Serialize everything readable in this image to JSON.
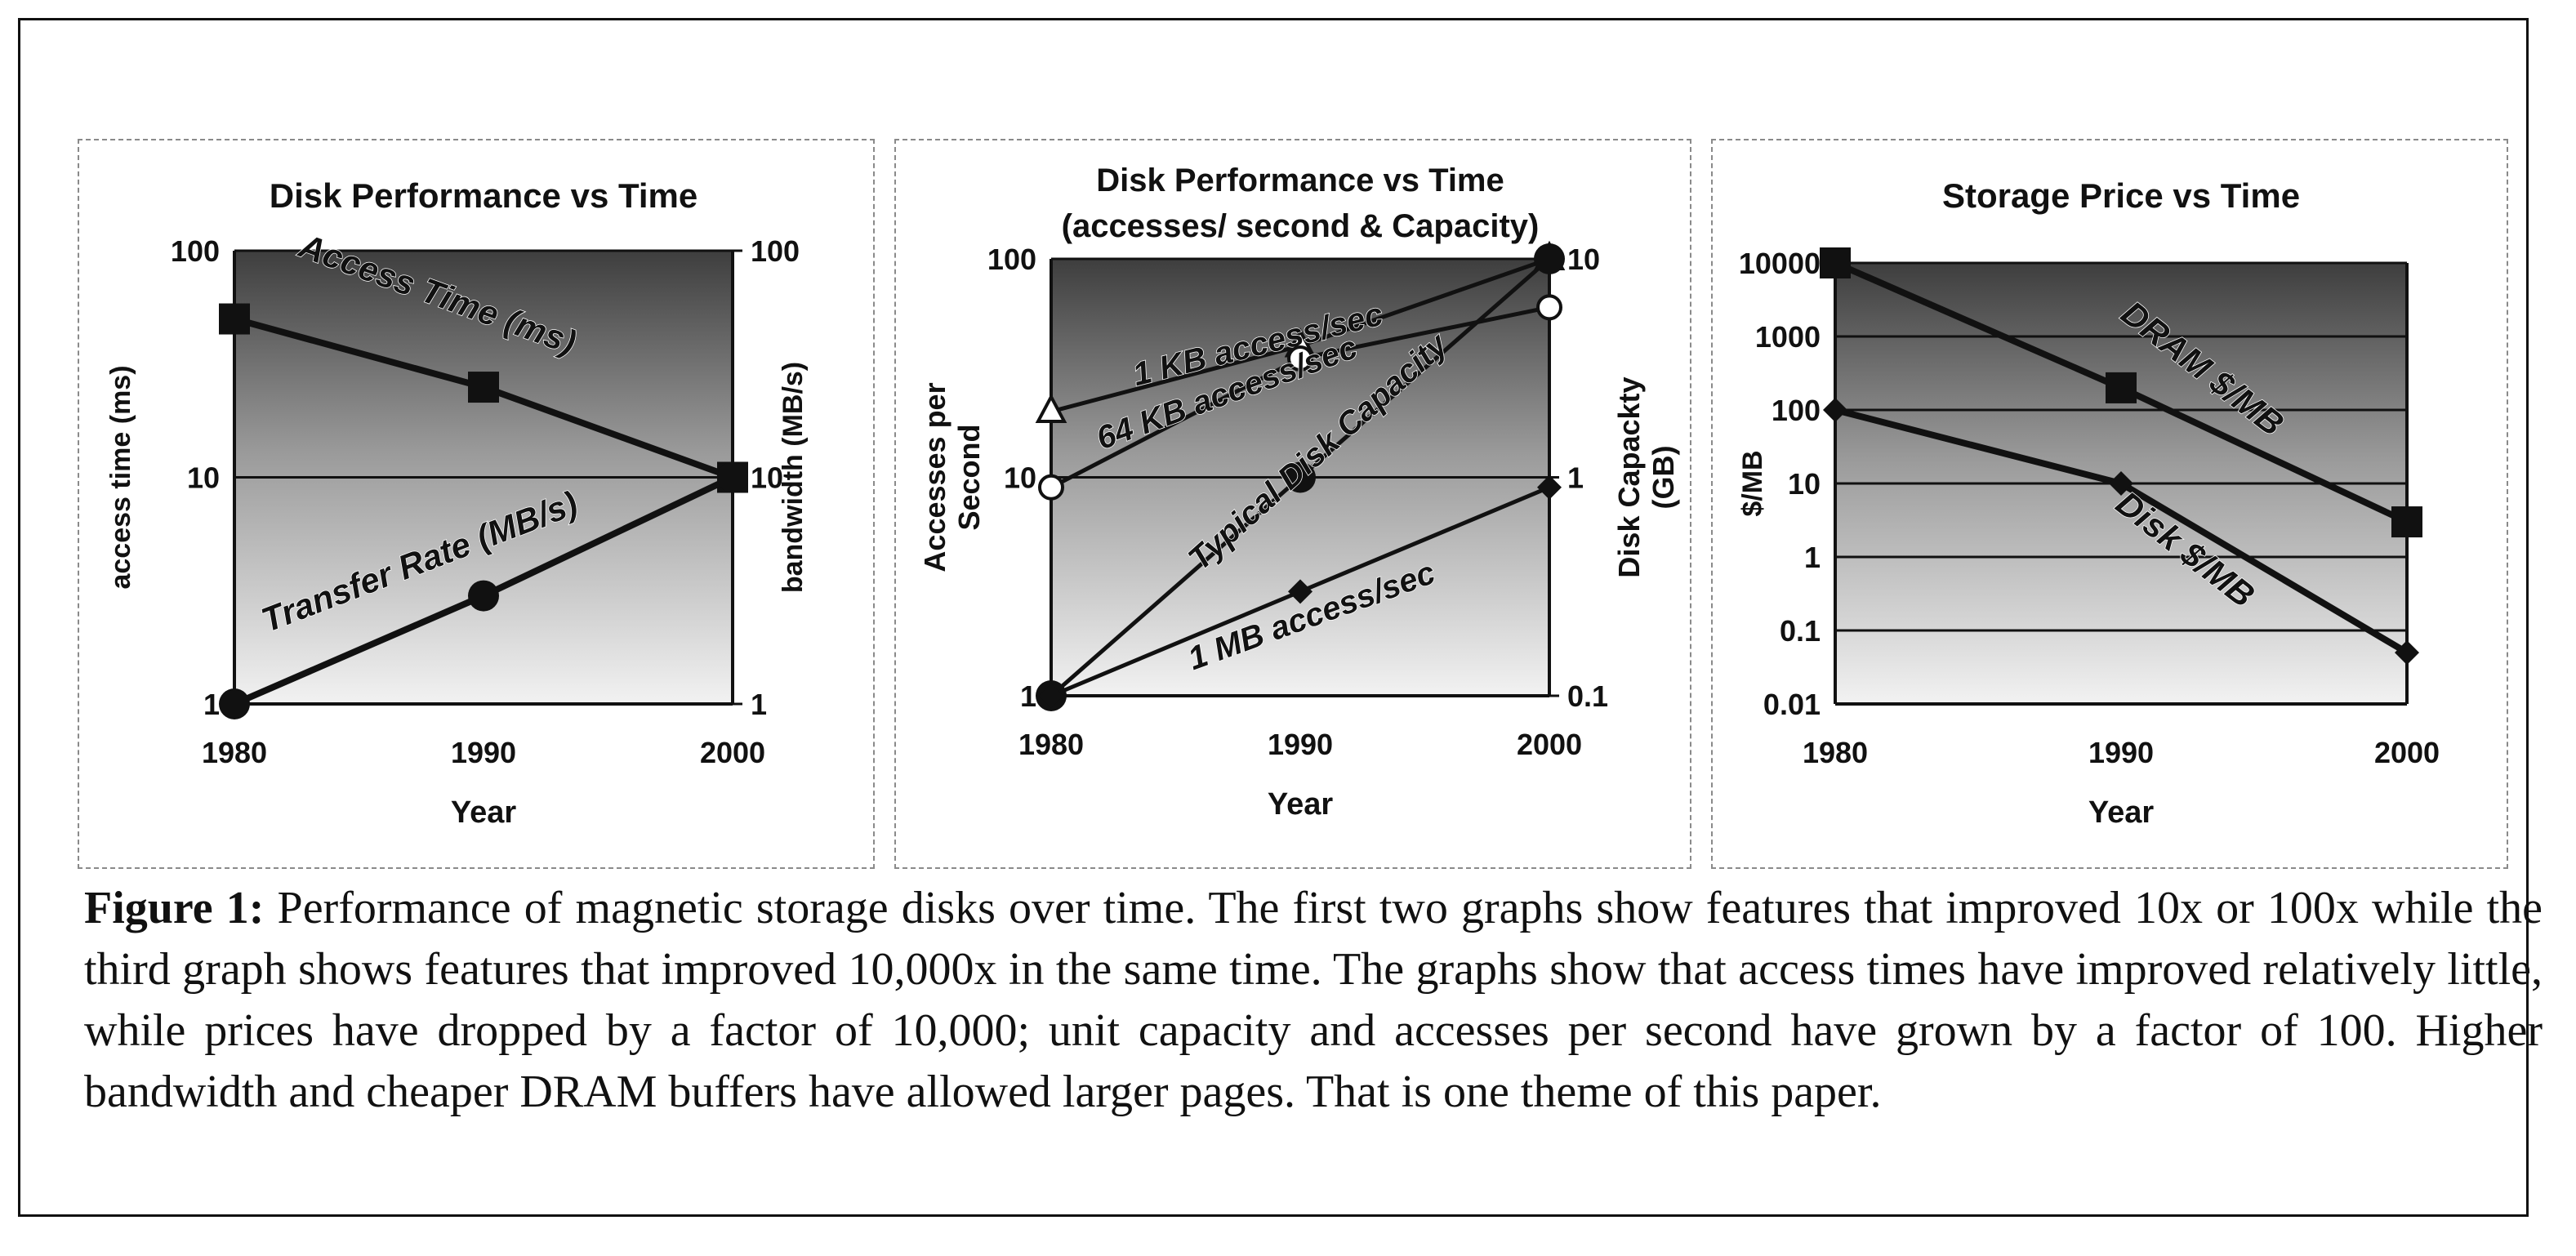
{
  "chart_data": [
    {
      "type": "line",
      "title": "Disk Performance vs Time",
      "xlabel": "Year",
      "ylabel": "access time (ms)",
      "y2label": "bandwidth (MB/s)",
      "yscale": "log",
      "ylim": [
        1,
        100
      ],
      "y2lim": [
        1,
        100
      ],
      "yticks": [
        "1",
        "10",
        "100"
      ],
      "y2ticks": [
        "1",
        "10",
        "100"
      ],
      "x": [
        "1980",
        "1990",
        "2000"
      ],
      "grid": true,
      "series": [
        {
          "name": "Access Time (ms)",
          "axis": "left",
          "marker": "square",
          "values": [
            50,
            25,
            10
          ]
        },
        {
          "name": "Transfer Rate (MB/s)",
          "axis": "right",
          "marker": "circle",
          "values": [
            1,
            3,
            10
          ]
        }
      ]
    },
    {
      "type": "line",
      "title": "Disk Performance vs Time",
      "subtitle": "(accesses/ second & Capacity)",
      "xlabel": "Year",
      "ylabel": "Accesses per Second",
      "y2label": "Disk Capackty (GB)",
      "yscale": "log",
      "ylim": [
        1,
        100
      ],
      "y2lim": [
        0.1,
        10
      ],
      "yticks": [
        "1",
        "10",
        "100"
      ],
      "y2ticks": [
        "0.1",
        "1",
        "10"
      ],
      "x": [
        "1980",
        "1990",
        "2000"
      ],
      "grid": true,
      "series": [
        {
          "name": "1 KB access/sec",
          "axis": "left",
          "marker": "triangle",
          "values": [
            20,
            40,
            100
          ]
        },
        {
          "name": "64 KB access/sec",
          "axis": "left",
          "marker": "circle-open",
          "values": [
            9,
            35,
            60
          ]
        },
        {
          "name": "Typical Disk Capacity",
          "axis": "right",
          "marker": "circle",
          "values": [
            0.1,
            1,
            10
          ]
        },
        {
          "name": "1 MB access/sec",
          "axis": "left",
          "marker": "diamond",
          "values": [
            1,
            3,
            9
          ]
        }
      ]
    },
    {
      "type": "line",
      "title": "Storage Price vs Time",
      "xlabel": "Year",
      "ylabel": "$/MB",
      "yscale": "log",
      "ylim": [
        0.01,
        10000
      ],
      "yticks": [
        "0.01",
        "0.1",
        "1",
        "10",
        "100",
        "1000",
        "10000"
      ],
      "x": [
        "1980",
        "1990",
        "2000"
      ],
      "grid": true,
      "series": [
        {
          "name": "DRAM $/MB",
          "axis": "left",
          "marker": "square",
          "values": [
            10000,
            200,
            3
          ]
        },
        {
          "name": "Disk $/MB",
          "axis": "left",
          "marker": "diamond",
          "values": [
            100,
            10,
            0.05
          ]
        }
      ]
    }
  ],
  "caption": {
    "label": "Figure 1:",
    "text": "Performance of magnetic storage disks over time. The first two graphs show features that improved 10x or 100x while the third graph shows features that improved 10,000x in the same time.   The graphs show that access times have improved relatively little, while prices have dropped by a factor of 10,000; unit capacity and accesses per second have grown by a factor of 100.  Higher bandwidth and cheaper DRAM buffers have allowed larger pages.  That is one theme of this paper."
  }
}
